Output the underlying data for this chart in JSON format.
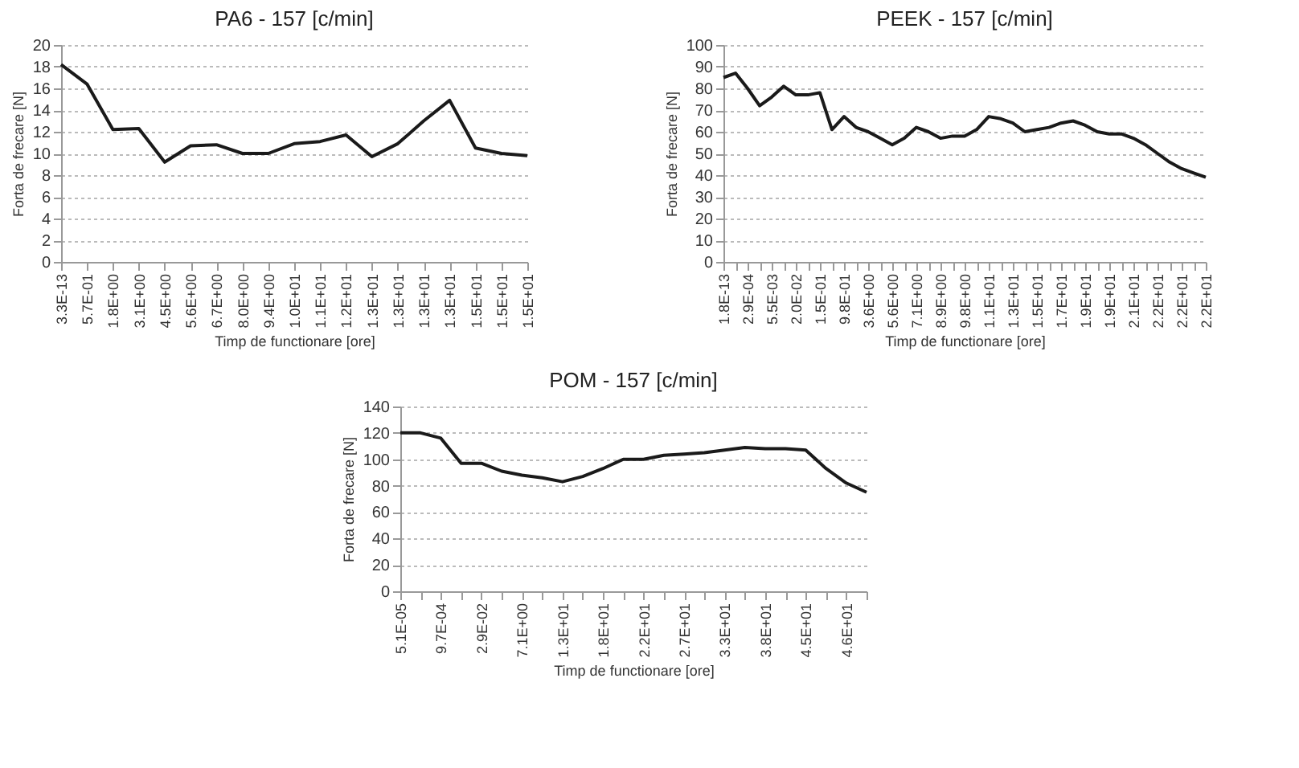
{
  "chart_data": [
    {
      "type": "line",
      "title": "PA6 - 157 [c/min]",
      "xlabel": "Timp de functionare [ore]",
      "ylabel": "Forta de frecare [N]",
      "color": "#1a1a1a",
      "grid": "y",
      "ylim": [
        0,
        20
      ],
      "yticks": [
        0,
        2,
        4,
        6,
        8,
        10,
        12,
        14,
        16,
        18,
        20
      ],
      "categories": [
        "3.3E-13",
        "5.7E-01",
        "1.8E+00",
        "3.1E+00",
        "4.5E+00",
        "5.6E+00",
        "6.7E+00",
        "8.0E+00",
        "9.4E+00",
        "1.0E+01",
        "1.1E+01",
        "1.2E+01",
        "1.3E+01",
        "1.3E+01",
        "1.3E+01",
        "1.3E+01",
        "1.5E+01",
        "1.5E+01",
        "1.5E+01"
      ],
      "values": [
        18.2,
        16.4,
        12.2,
        12.3,
        9.2,
        10.7,
        10.8,
        10.0,
        10.0,
        10.9,
        11.1,
        11.7,
        9.7,
        10.9,
        13.0,
        14.9,
        10.5,
        10.0,
        9.8
      ]
    },
    {
      "type": "line",
      "title": "PEEK - 157 [c/min]",
      "xlabel": "Timp de functionare [ore]",
      "ylabel": "Forta de frecare [N]",
      "color": "#1a1a1a",
      "grid": "y",
      "ylim": [
        0,
        100
      ],
      "yticks": [
        0,
        10,
        20,
        30,
        40,
        50,
        60,
        70,
        80,
        90,
        100
      ],
      "categories": [
        "1.8E-13",
        null,
        "2.9E-04",
        null,
        "5.5E-03",
        null,
        "2.0E-02",
        null,
        "1.5E-01",
        null,
        "9.8E-01",
        null,
        "3.6E+00",
        null,
        "5.6E+00",
        null,
        "7.1E+00",
        null,
        "8.9E+00",
        null,
        "9.8E+00",
        null,
        "1.1E+01",
        null,
        "1.3E+01",
        null,
        "1.5E+01",
        null,
        "1.7E+01",
        null,
        "1.9E+01",
        null,
        "1.9E+01",
        null,
        "2.1E+01",
        null,
        "2.2E+01",
        null,
        "2.2E+01",
        null,
        "2.2E+01"
      ],
      "values": [
        85,
        87,
        80,
        72,
        76,
        81,
        77,
        77,
        78,
        61,
        67,
        62,
        60,
        57,
        54,
        57,
        62,
        60,
        57,
        58,
        58,
        61,
        67,
        66,
        64,
        60,
        61,
        62,
        64,
        65,
        63,
        60,
        59,
        59,
        57,
        54,
        50,
        46,
        43,
        41,
        39
      ]
    },
    {
      "type": "line",
      "title": "POM - 157 [c/min]",
      "xlabel": "Timp de functionare [ore]",
      "ylabel": "Forta de frecare [N]",
      "color": "#1a1a1a",
      "grid": "y",
      "ylim": [
        0,
        140
      ],
      "yticks": [
        0,
        20,
        40,
        60,
        80,
        100,
        120,
        140
      ],
      "categories": [
        "5.1E-05",
        null,
        "9.7E-04",
        null,
        "2.9E-02",
        null,
        "7.1E+00",
        null,
        "1.3E+01",
        null,
        "1.8E+01",
        null,
        "2.2E+01",
        null,
        "2.7E+01",
        null,
        "3.3E+01",
        null,
        "3.8E+01",
        null,
        "4.5E+01",
        null,
        "4.6E+01",
        null
      ],
      "values": [
        120,
        120,
        116,
        97,
        97,
        91,
        88,
        86,
        83,
        87,
        93,
        100,
        100,
        103,
        104,
        105,
        107,
        109,
        108,
        108,
        107,
        93,
        82,
        75
      ]
    }
  ]
}
